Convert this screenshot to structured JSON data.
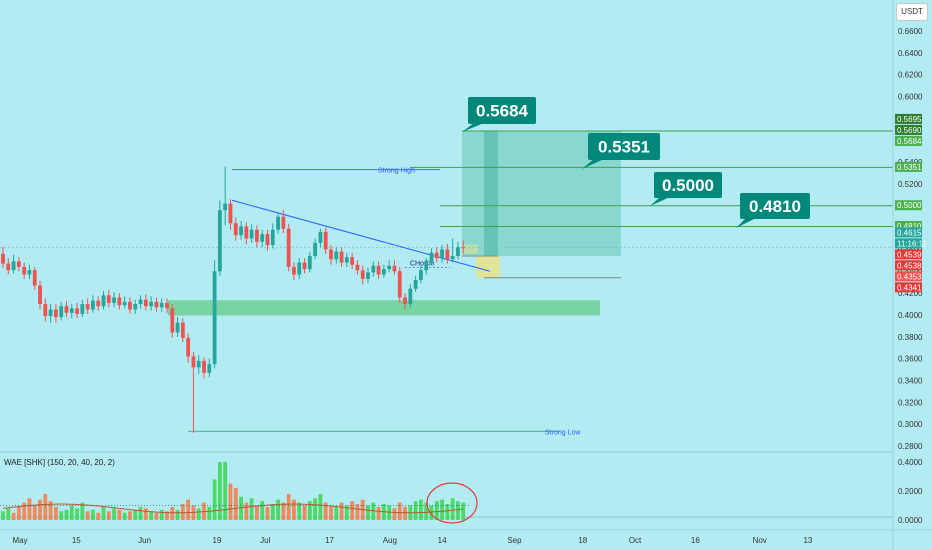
{
  "header": {
    "currency": "USDT"
  },
  "indicator": {
    "label": "WAE [SHK] (150, 20, 40, 20, 2)"
  },
  "chart_data": {
    "type": "candlestick",
    "ylim": [
      0.275,
      0.67
    ],
    "price_ticks": [
      "0.6600",
      "0.6400",
      "0.6200",
      "0.6000",
      "0.5800",
      "0.5600",
      "0.5400",
      "0.5200",
      "0.5000",
      "0.4800",
      "0.4600",
      "0.4400",
      "0.4200",
      "0.4000",
      "0.3800",
      "0.3600",
      "0.3400",
      "0.3200",
      "0.3000",
      "0.2800"
    ],
    "x_ticks": [
      {
        "label": "May",
        "day": 0
      },
      {
        "label": "15",
        "day": 14
      },
      {
        "label": "Jun",
        "day": 31
      },
      {
        "label": "19",
        "day": 49
      },
      {
        "label": "Jul",
        "day": 61
      },
      {
        "label": "17",
        "day": 77
      },
      {
        "label": "Aug",
        "day": 92
      },
      {
        "label": "14",
        "day": 105
      },
      {
        "label": "Sep",
        "day": 123
      },
      {
        "label": "18",
        "day": 140
      },
      {
        "label": "Oct",
        "day": 153
      },
      {
        "label": "16",
        "day": 168
      },
      {
        "label": "Nov",
        "day": 184
      },
      {
        "label": "13",
        "day": 196
      }
    ],
    "targets": [
      {
        "label": "0.5684",
        "price": 0.5684
      },
      {
        "label": "0.5351",
        "price": 0.5351
      },
      {
        "label": "0.5000",
        "price": 0.5
      },
      {
        "label": "0.4810",
        "price": 0.481
      }
    ],
    "price_tags": [
      {
        "label": "0.5695",
        "price": 0.5695,
        "color": "#2e7d32"
      },
      {
        "label": "0.5690",
        "price": 0.569,
        "color": "#2e7d32"
      },
      {
        "label": "0.5684",
        "price": 0.5684,
        "color": "#4caf50"
      },
      {
        "label": "0.5351",
        "price": 0.5351,
        "color": "#4caf50"
      },
      {
        "label": "0.5000",
        "price": 0.5,
        "color": "#4caf50"
      },
      {
        "label": "0.4810",
        "price": 0.481,
        "color": "#4caf50"
      },
      {
        "label": "0.4615",
        "price": 0.4615,
        "color": "#26a69a"
      },
      {
        "label": "11:16:11",
        "price": 0.4615,
        "color": "#26a69a"
      },
      {
        "label": "0.4539",
        "price": 0.4539,
        "color": "#e53935"
      },
      {
        "label": "0.4538",
        "price": 0.4538,
        "color": "#e53935"
      },
      {
        "label": "0.4353",
        "price": 0.4353,
        "color": "#ef5350"
      },
      {
        "label": "0.4341",
        "price": 0.4341,
        "color": "#e53935"
      }
    ],
    "annotations": {
      "strong_high": {
        "label": "Strong High",
        "price": 0.533
      },
      "strong_low": {
        "label": "Strong Low",
        "price": 0.2935
      },
      "choch": {
        "label": "CHoCH",
        "price": 0.4435
      }
    },
    "demand_zone": {
      "top": 0.4135,
      "bottom": 0.3995
    },
    "trade": {
      "entry": 0.4539,
      "stop": 0.4341,
      "target": 0.5684
    },
    "wae_ticks": [
      "0.4000",
      "0.2000",
      "0.0000"
    ],
    "candles": [
      [
        0.456,
        0.447,
        0.462,
        0.443
      ],
      [
        0.447,
        0.441,
        0.452,
        0.437
      ],
      [
        0.441,
        0.449,
        0.455,
        0.438
      ],
      [
        0.449,
        0.444,
        0.453,
        0.44
      ],
      [
        0.444,
        0.437,
        0.448,
        0.433
      ],
      [
        0.437,
        0.441,
        0.446,
        0.433
      ],
      [
        0.441,
        0.427,
        0.444,
        0.423
      ],
      [
        0.427,
        0.41,
        0.431,
        0.405
      ],
      [
        0.41,
        0.399,
        0.415,
        0.394
      ],
      [
        0.399,
        0.405,
        0.41,
        0.393
      ],
      [
        0.405,
        0.398,
        0.41,
        0.393
      ],
      [
        0.398,
        0.408,
        0.412,
        0.395
      ],
      [
        0.408,
        0.402,
        0.413,
        0.398
      ],
      [
        0.402,
        0.406,
        0.41,
        0.397
      ],
      [
        0.406,
        0.401,
        0.411,
        0.397
      ],
      [
        0.401,
        0.41,
        0.414,
        0.398
      ],
      [
        0.41,
        0.405,
        0.415,
        0.401
      ],
      [
        0.405,
        0.413,
        0.418,
        0.402
      ],
      [
        0.413,
        0.408,
        0.417,
        0.404
      ],
      [
        0.408,
        0.418,
        0.422,
        0.405
      ],
      [
        0.418,
        0.411,
        0.423,
        0.407
      ],
      [
        0.411,
        0.416,
        0.421,
        0.407
      ],
      [
        0.416,
        0.409,
        0.42,
        0.405
      ],
      [
        0.409,
        0.412,
        0.417,
        0.406
      ],
      [
        0.412,
        0.405,
        0.416,
        0.401
      ],
      [
        0.405,
        0.41,
        0.414,
        0.401
      ],
      [
        0.41,
        0.414,
        0.418,
        0.406
      ],
      [
        0.414,
        0.408,
        0.419,
        0.404
      ],
      [
        0.408,
        0.412,
        0.417,
        0.404
      ],
      [
        0.412,
        0.407,
        0.416,
        0.403
      ],
      [
        0.407,
        0.411,
        0.415,
        0.403
      ],
      [
        0.411,
        0.406,
        0.415,
        0.402
      ],
      [
        0.406,
        0.384,
        0.41,
        0.379
      ],
      [
        0.384,
        0.393,
        0.398,
        0.38
      ],
      [
        0.393,
        0.379,
        0.397,
        0.375
      ],
      [
        0.379,
        0.362,
        0.383,
        0.356
      ],
      [
        0.362,
        0.352,
        0.366,
        0.292
      ],
      [
        0.352,
        0.358,
        0.363,
        0.346
      ],
      [
        0.358,
        0.347,
        0.361,
        0.342
      ],
      [
        0.347,
        0.355,
        0.36,
        0.343
      ],
      [
        0.355,
        0.44,
        0.45,
        0.351
      ],
      [
        0.44,
        0.496,
        0.505,
        0.436
      ],
      [
        0.496,
        0.502,
        0.536,
        0.482
      ],
      [
        0.502,
        0.484,
        0.506,
        0.478
      ],
      [
        0.484,
        0.473,
        0.489,
        0.468
      ],
      [
        0.473,
        0.481,
        0.486,
        0.469
      ],
      [
        0.481,
        0.47,
        0.485,
        0.465
      ],
      [
        0.47,
        0.478,
        0.483,
        0.466
      ],
      [
        0.478,
        0.467,
        0.482,
        0.462
      ],
      [
        0.467,
        0.474,
        0.478,
        0.462
      ],
      [
        0.474,
        0.464,
        0.478,
        0.459
      ],
      [
        0.464,
        0.478,
        0.484,
        0.461
      ],
      [
        0.478,
        0.49,
        0.494,
        0.474
      ],
      [
        0.49,
        0.479,
        0.496,
        0.475
      ],
      [
        0.479,
        0.444,
        0.483,
        0.44
      ],
      [
        0.444,
        0.437,
        0.448,
        0.432
      ],
      [
        0.437,
        0.448,
        0.452,
        0.433
      ],
      [
        0.448,
        0.442,
        0.452,
        0.438
      ],
      [
        0.442,
        0.454,
        0.458,
        0.439
      ],
      [
        0.454,
        0.466,
        0.47,
        0.451
      ],
      [
        0.466,
        0.476,
        0.479,
        0.462
      ],
      [
        0.476,
        0.46,
        0.48,
        0.456
      ],
      [
        0.46,
        0.451,
        0.464,
        0.446
      ],
      [
        0.451,
        0.458,
        0.462,
        0.447
      ],
      [
        0.458,
        0.448,
        0.462,
        0.444
      ],
      [
        0.448,
        0.453,
        0.457,
        0.444
      ],
      [
        0.453,
        0.446,
        0.457,
        0.442
      ],
      [
        0.446,
        0.441,
        0.45,
        0.437
      ],
      [
        0.441,
        0.433,
        0.445,
        0.428
      ],
      [
        0.433,
        0.439,
        0.443,
        0.429
      ],
      [
        0.439,
        0.445,
        0.449,
        0.435
      ],
      [
        0.445,
        0.437,
        0.449,
        0.433
      ],
      [
        0.437,
        0.442,
        0.446,
        0.434
      ],
      [
        0.442,
        0.445,
        0.45,
        0.439
      ],
      [
        0.445,
        0.44,
        0.45,
        0.437
      ],
      [
        0.44,
        0.416,
        0.444,
        0.411
      ],
      [
        0.416,
        0.41,
        0.42,
        0.405
      ],
      [
        0.41,
        0.424,
        0.428,
        0.407
      ],
      [
        0.424,
        0.432,
        0.436,
        0.421
      ],
      [
        0.432,
        0.441,
        0.445,
        0.429
      ],
      [
        0.441,
        0.449,
        0.452,
        0.437
      ],
      [
        0.449,
        0.457,
        0.461,
        0.445
      ],
      [
        0.457,
        0.452,
        0.462,
        0.448
      ],
      [
        0.452,
        0.46,
        0.464,
        0.448
      ],
      [
        0.46,
        0.451,
        0.465,
        0.447
      ],
      [
        0.451,
        0.454,
        0.47,
        0.448
      ],
      [
        0.454,
        0.462,
        0.467,
        0.451
      ],
      [
        0.462,
        0.4615,
        0.468,
        0.456
      ]
    ],
    "wae_bars": [
      [
        0.06,
        1
      ],
      [
        0.08,
        1
      ],
      [
        0.05,
        0
      ],
      [
        0.09,
        0
      ],
      [
        0.12,
        0
      ],
      [
        0.15,
        0
      ],
      [
        0.1,
        0
      ],
      [
        0.14,
        0
      ],
      [
        0.18,
        0
      ],
      [
        0.13,
        0
      ],
      [
        0.09,
        0
      ],
      [
        0.06,
        1
      ],
      [
        0.07,
        1
      ],
      [
        0.1,
        1
      ],
      [
        0.08,
        1
      ],
      [
        0.12,
        1
      ],
      [
        0.06,
        0
      ],
      [
        0.07,
        1
      ],
      [
        0.05,
        0
      ],
      [
        0.09,
        1
      ],
      [
        0.06,
        0
      ],
      [
        0.08,
        1
      ],
      [
        0.07,
        0
      ],
      [
        0.05,
        1
      ],
      [
        0.06,
        0
      ],
      [
        0.07,
        1
      ],
      [
        0.09,
        1
      ],
      [
        0.08,
        0
      ],
      [
        0.06,
        1
      ],
      [
        0.05,
        0
      ],
      [
        0.07,
        1
      ],
      [
        0.06,
        0
      ],
      [
        0.09,
        0
      ],
      [
        0.07,
        1
      ],
      [
        0.11,
        0
      ],
      [
        0.14,
        0
      ],
      [
        0.1,
        0
      ],
      [
        0.08,
        1
      ],
      [
        0.12,
        0
      ],
      [
        0.09,
        1
      ],
      [
        0.28,
        1
      ],
      [
        0.4,
        1
      ],
      [
        0.4,
        1
      ],
      [
        0.25,
        0
      ],
      [
        0.22,
        0
      ],
      [
        0.16,
        1
      ],
      [
        0.12,
        0
      ],
      [
        0.15,
        1
      ],
      [
        0.1,
        0
      ],
      [
        0.13,
        1
      ],
      [
        0.09,
        0
      ],
      [
        0.11,
        1
      ],
      [
        0.14,
        1
      ],
      [
        0.12,
        0
      ],
      [
        0.18,
        0
      ],
      [
        0.14,
        0
      ],
      [
        0.12,
        1
      ],
      [
        0.1,
        0
      ],
      [
        0.13,
        1
      ],
      [
        0.15,
        1
      ],
      [
        0.18,
        1
      ],
      [
        0.12,
        0
      ],
      [
        0.1,
        0
      ],
      [
        0.09,
        1
      ],
      [
        0.12,
        0
      ],
      [
        0.1,
        1
      ],
      [
        0.13,
        0
      ],
      [
        0.11,
        0
      ],
      [
        0.14,
        0
      ],
      [
        0.1,
        1
      ],
      [
        0.12,
        1
      ],
      [
        0.09,
        0
      ],
      [
        0.11,
        1
      ],
      [
        0.1,
        1
      ],
      [
        0.08,
        0
      ],
      [
        0.12,
        0
      ],
      [
        0.09,
        0
      ],
      [
        0.1,
        1
      ],
      [
        0.13,
        1
      ],
      [
        0.14,
        1
      ],
      [
        0.12,
        1
      ],
      [
        0.1,
        1
      ],
      [
        0.13,
        1
      ],
      [
        0.14,
        1
      ],
      [
        0.11,
        1
      ],
      [
        0.15,
        1
      ],
      [
        0.13,
        1
      ],
      [
        0.12,
        1
      ]
    ]
  }
}
